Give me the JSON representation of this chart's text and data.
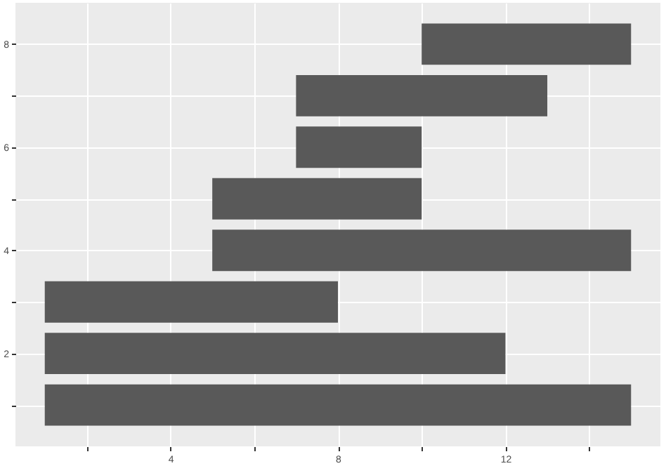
{
  "chart_data": {
    "type": "bar",
    "orientation": "horizontal",
    "x": [
      1,
      2,
      3,
      4,
      5,
      6,
      7,
      8
    ],
    "base": [
      1,
      1,
      1,
      5,
      5,
      7,
      7,
      10
    ],
    "values": [
      14,
      11,
      7,
      10,
      5,
      3,
      6,
      5
    ],
    "color": "#595959",
    "xlim": [
      0.3,
      15.7
    ],
    "xticks": [
      {
        "value": 2,
        "label": null
      },
      4,
      {
        "value": 6,
        "label": null
      },
      8,
      {
        "value": 10,
        "label": null
      },
      12,
      {
        "value": 14,
        "label": null
      }
    ],
    "ylim": [
      0.2,
      8.8
    ],
    "yticks": [
      {
        "value": 1,
        "label": null
      },
      2,
      {
        "value": 3,
        "label": null
      },
      4,
      {
        "value": 5,
        "label": null
      },
      6,
      {
        "value": 7,
        "label": null
      },
      8
    ],
    "grid": true
  }
}
